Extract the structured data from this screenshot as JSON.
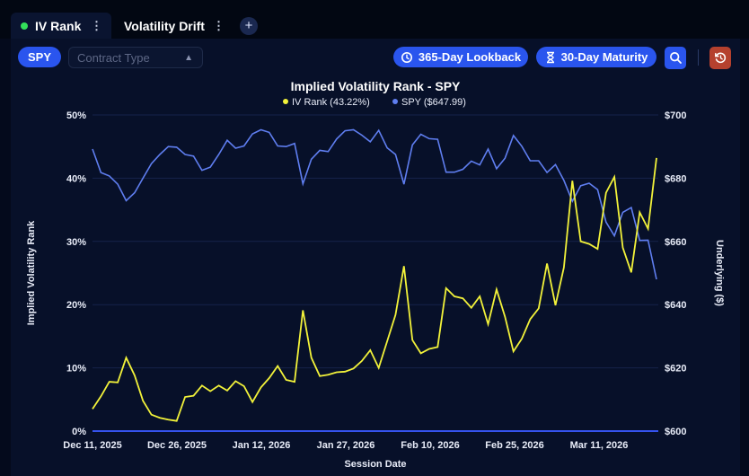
{
  "tabs": [
    {
      "label": "IV Rank",
      "active": true
    },
    {
      "label": "Volatility Drift",
      "active": false
    }
  ],
  "toolbar": {
    "symbol": "SPY",
    "contract_type_placeholder": "Contract Type",
    "lookback_label": "365-Day Lookback",
    "maturity_label": "30-Day Maturity",
    "icons": [
      "search-icon",
      "history-reset-icon"
    ]
  },
  "colors": {
    "accent": "#2a55ee",
    "iv_line": "#f2f23a",
    "spy_line": "#5f7ef0",
    "reset_button": "#b5412e"
  },
  "chart_data": {
    "type": "line",
    "title": "Implied Volatility Rank - SPY",
    "xlabel": "Session Date",
    "ylabel": "Implied Volatility Rank",
    "y2label": "Underlying ($)",
    "ylim": [
      0,
      50
    ],
    "y2lim": [
      600,
      700
    ],
    "yticks": [
      "0%",
      "10%",
      "20%",
      "30%",
      "40%",
      "50%"
    ],
    "y2ticks": [
      "$600",
      "$620",
      "$640",
      "$660",
      "$680",
      "$700"
    ],
    "xticks": [
      "Dec 11, 2025",
      "Dec 26, 2025",
      "Jan 12, 2026",
      "Jan 27, 2026",
      "Feb 10, 2026",
      "Feb 25, 2026",
      "Mar 11, 2026"
    ],
    "grid": true,
    "legend_position": "top-center",
    "series": [
      {
        "name": "IV Rank (43.22%)",
        "axis": "left",
        "values": [
          3.5,
          5.5,
          7.8,
          7.7,
          11.6,
          8.8,
          4.8,
          2.6,
          2.1,
          1.8,
          1.6,
          5.4,
          5.6,
          7.2,
          6.3,
          7.2,
          6.4,
          7.9,
          7.1,
          4.6,
          6.9,
          8.4,
          10.3,
          8.1,
          7.8,
          19.1,
          11.6,
          8.7,
          8.9,
          9.3,
          9.4,
          9.9,
          11.1,
          12.8,
          10,
          14.2,
          18.4,
          26.1,
          14.4,
          12.3,
          13,
          13.3,
          22.6,
          21.3,
          21.0,
          19.5,
          21.3,
          16.9,
          22.4,
          18.1,
          12.6,
          14.6,
          17.7,
          19.4,
          26.5,
          19.9,
          25.9,
          39.6,
          30.0,
          29.6,
          28.8,
          37.7,
          40.2,
          29.0,
          25.1,
          34.6,
          32.0,
          43.2
        ]
      },
      {
        "name": "SPY ($647.99)",
        "axis": "right",
        "values": [
          689.2,
          681.8,
          680.7,
          678.1,
          672.9,
          675.4,
          680,
          684.6,
          687.5,
          690,
          689.8,
          687.5,
          687,
          682.5,
          683.5,
          687.5,
          692,
          689.5,
          690.2,
          694,
          695.3,
          694.5,
          690.2,
          690,
          691,
          678.2,
          686,
          688.8,
          688.4,
          692.4,
          695,
          695.3,
          693.6,
          691.5,
          695.1,
          689.6,
          687.5,
          678.1,
          690.5,
          693.9,
          692.5,
          692.3,
          681.9,
          681.9,
          682.8,
          685.4,
          684.2,
          689.2,
          683,
          686.3,
          693.5,
          690.1,
          685.5,
          685.5,
          681.8,
          684.3,
          679.3,
          672.7,
          677.6,
          678.4,
          676.4,
          666.1,
          661.8,
          669.2,
          670.7,
          660.3,
          660.4,
          648.0
        ]
      }
    ]
  }
}
